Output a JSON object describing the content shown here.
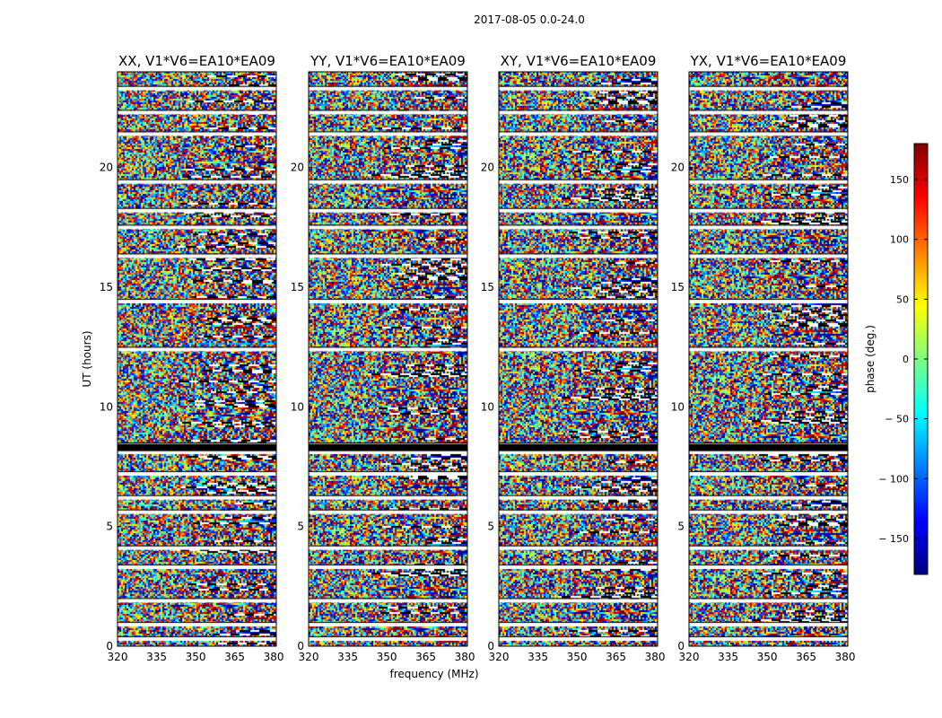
{
  "figure": {
    "suptitle": "2017-08-05 0.0-24.0",
    "xlabel": "frequency (MHz)",
    "ylabel": "UT (hours)"
  },
  "colorbar": {
    "label": "phase (deg.)",
    "range": [
      -180,
      180
    ],
    "ticks": [
      150,
      100,
      50,
      0,
      -50,
      -100,
      -150
    ],
    "tick_labels": [
      "150",
      "100",
      "50",
      "0",
      "− 50",
      "− 100",
      "− 150"
    ],
    "cmap": "jet",
    "cmap_colors": [
      "#00007f",
      "#0000ff",
      "#007fff",
      "#00ffff",
      "#7fff7f",
      "#ffff00",
      "#ff7f00",
      "#ff0000",
      "#7f0000"
    ]
  },
  "chart_data": [
    {
      "type": "heatmap",
      "title": "XX, V1*V6=EA10*EA09",
      "xlabel": "frequency (MHz)",
      "ylabel": "UT (hours)",
      "xlim": [
        320,
        381
      ],
      "ylim": [
        0,
        24
      ],
      "xticks": [
        320,
        335,
        350,
        365,
        380
      ],
      "xtick_labels": [
        "320",
        "335",
        "350",
        "365",
        "380"
      ],
      "yticks": [
        0,
        5,
        10,
        15,
        20
      ],
      "ytick_labels": [
        "0",
        "5",
        "10",
        "15",
        "20"
      ],
      "colorbar": "phase (deg.)",
      "value_range": [
        -180,
        180
      ],
      "blank_ut_hours": [
        0.3,
        0.9,
        1.9,
        3.3,
        4.1,
        5.6,
        6.2,
        7.2,
        8.1,
        8.4,
        12.4,
        14.4,
        16.3,
        17.5,
        18.2,
        19.4,
        21.4,
        22.3,
        23.3
      ],
      "amplitude_note": "noisy phase (wrapped) vs frequency and time"
    },
    {
      "type": "heatmap",
      "title": "YY, V1*V6=EA10*EA09",
      "xlabel": "frequency (MHz)",
      "ylabel": "",
      "xlim": [
        320,
        381
      ],
      "ylim": [
        0,
        24
      ],
      "xticks": [
        320,
        335,
        350,
        365,
        380
      ],
      "xtick_labels": [
        "320",
        "335",
        "350",
        "365",
        "380"
      ],
      "yticks": [
        0,
        5,
        10,
        15,
        20
      ],
      "ytick_labels": [
        "0",
        "5",
        "10",
        "15",
        "20"
      ],
      "colorbar": "phase (deg.)",
      "value_range": [
        -180,
        180
      ],
      "blank_ut_hours": [
        0.3,
        0.9,
        1.9,
        3.3,
        4.1,
        5.6,
        6.2,
        7.2,
        8.1,
        8.4,
        12.4,
        14.4,
        16.3,
        17.5,
        18.2,
        19.4,
        21.4,
        22.3,
        23.3
      ],
      "amplitude_note": "noisy phase (wrapped) vs frequency and time"
    },
    {
      "type": "heatmap",
      "title": "XY, V1*V6=EA10*EA09",
      "xlabel": "frequency (MHz)",
      "ylabel": "",
      "xlim": [
        320,
        381
      ],
      "ylim": [
        0,
        24
      ],
      "xticks": [
        320,
        335,
        350,
        365,
        380
      ],
      "xtick_labels": [
        "320",
        "335",
        "350",
        "365",
        "380"
      ],
      "yticks": [
        0,
        5,
        10,
        15,
        20
      ],
      "ytick_labels": [
        "0",
        "5",
        "10",
        "15",
        "20"
      ],
      "colorbar": "phase (deg.)",
      "value_range": [
        -180,
        180
      ],
      "blank_ut_hours": [
        0.3,
        0.9,
        1.9,
        3.3,
        4.1,
        5.6,
        6.2,
        7.2,
        8.1,
        8.4,
        12.4,
        14.4,
        16.3,
        17.5,
        18.2,
        19.4,
        21.4,
        22.3,
        23.3
      ],
      "amplitude_note": "noisy phase (wrapped) vs frequency and time"
    },
    {
      "type": "heatmap",
      "title": "YX, V1*V6=EA10*EA09",
      "xlabel": "frequency (MHz)",
      "ylabel": "",
      "xlim": [
        320,
        381
      ],
      "ylim": [
        0,
        24
      ],
      "xticks": [
        320,
        335,
        350,
        365,
        380
      ],
      "xtick_labels": [
        "320",
        "335",
        "350",
        "365",
        "380"
      ],
      "yticks": [
        0,
        5,
        10,
        15,
        20
      ],
      "ytick_labels": [
        "0",
        "5",
        "10",
        "15",
        "20"
      ],
      "colorbar": "phase (deg.)",
      "value_range": [
        -180,
        180
      ],
      "blank_ut_hours": [
        0.3,
        0.9,
        1.9,
        3.3,
        4.1,
        5.6,
        6.2,
        7.2,
        8.1,
        8.4,
        12.4,
        14.4,
        16.3,
        17.5,
        18.2,
        19.4,
        21.4,
        22.3,
        23.3
      ],
      "amplitude_note": "noisy phase (wrapped) vs frequency and time"
    }
  ]
}
